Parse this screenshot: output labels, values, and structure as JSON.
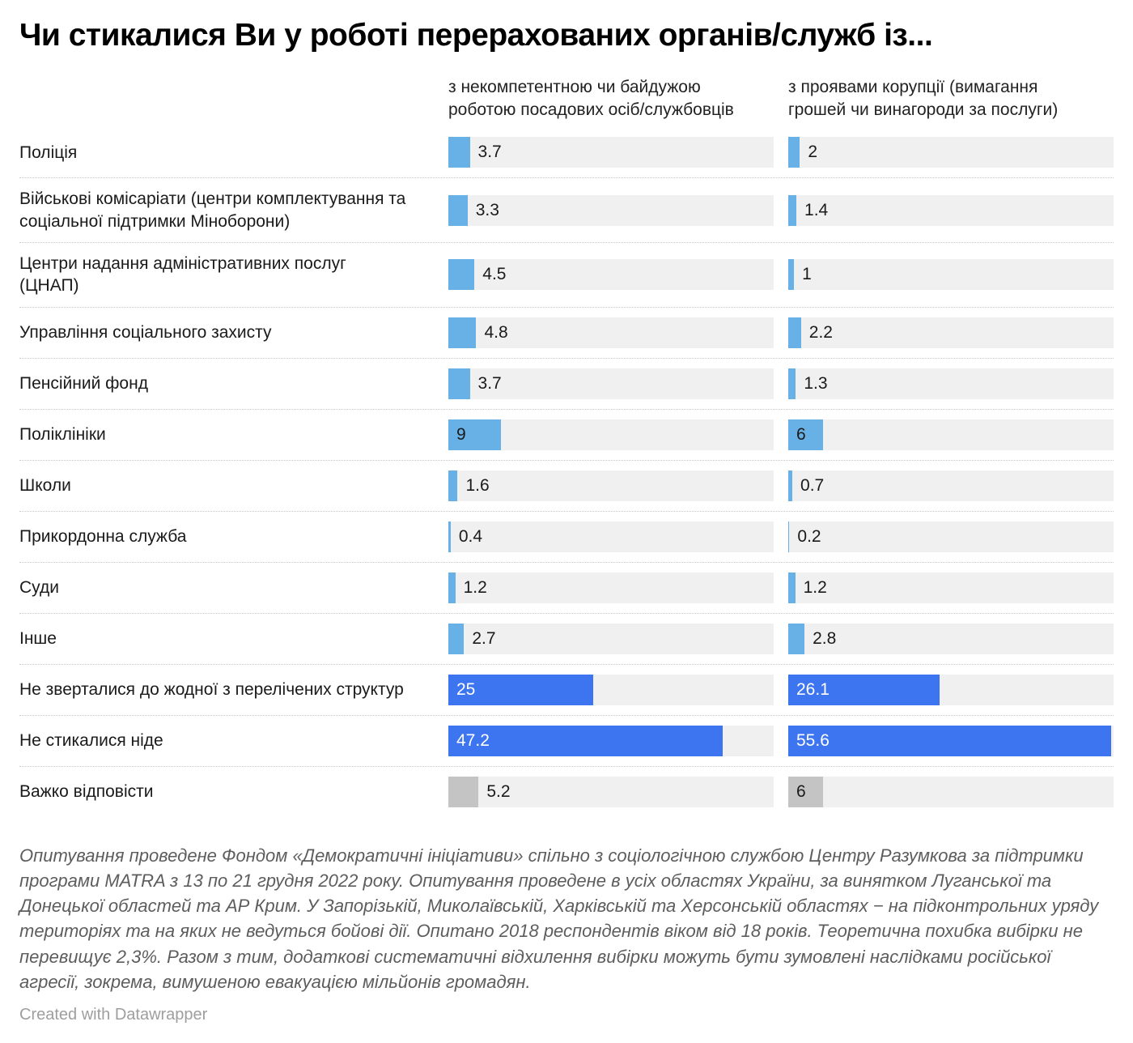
{
  "title": "Чи стикалися Ви у роботі перерахованих органів/служб із...",
  "chart_data": {
    "type": "bar",
    "orientation": "horizontal",
    "categories": [
      "Поліція",
      "Військові комісаріати (центри комплектування та соціальної підтримки Міноборони)",
      "Центри надання адміністративних послуг (ЦНАП)",
      "Управління соціального захисту",
      "Пенсійний фонд",
      "Поліклініки",
      "Школи",
      "Прикордонна служба",
      "Суди",
      "Інше",
      "Не зверталися до жодної з перелічених структур",
      "Не стикалися ніде",
      "Важко відповісти"
    ],
    "series": [
      {
        "name": "з некомпетентною чи байдужою роботою посадових осіб/службовців",
        "values": [
          3.7,
          3.3,
          4.5,
          4.8,
          3.7,
          9,
          1.6,
          0.4,
          1.2,
          2.7,
          25,
          47.2,
          5.2
        ]
      },
      {
        "name": "з проявами корупції (вимагання грошей чи винагороди за послуги)",
        "values": [
          2,
          1.4,
          1,
          2.2,
          1.3,
          6,
          0.7,
          0.2,
          1.2,
          2.8,
          26.1,
          55.6,
          6
        ]
      }
    ],
    "xlim": [
      0,
      56
    ],
    "grid": false,
    "legend_position": "column-headers",
    "value_labels": true
  },
  "row_variants": [
    "light",
    "light",
    "light",
    "light",
    "light",
    "light",
    "light",
    "light",
    "light",
    "light",
    "dark",
    "dark",
    "gray"
  ],
  "colors": {
    "bar_light": "#68b1e6",
    "bar_dark": "#3d74f0",
    "bar_gray": "#c4c4c4",
    "track": "#f0f0f1",
    "value_inside_dark_bar": "#ffffff",
    "value_text": "#1a1a1a"
  },
  "notes": "Опитування проведене Фондом «Демократичні ініціативи» спільно з соціологічною службою Центру Разумкова за підтримки програми MATRA з 13 по 21 грудня 2022 року. Опитування проведене в усіх областях України, за винятком Луганської та Донецької областей та АР Крим. У Запорізькій, Миколаївській, Харківській та Херсонській областях − на підконтрольних уряду територіях та на яких не ведуться бойові дії. Опитано 2018 респондентів віком від 18 років. Теоретична похибка вибірки не перевищує 2,3%. Разом з тим, додаткові систематичні відхилення вибірки можуть бути зумовлені наслідками російської агресії, зокрема, вимушеною евакуацією мільйонів громадян.",
  "credit": "Created with Datawrapper"
}
